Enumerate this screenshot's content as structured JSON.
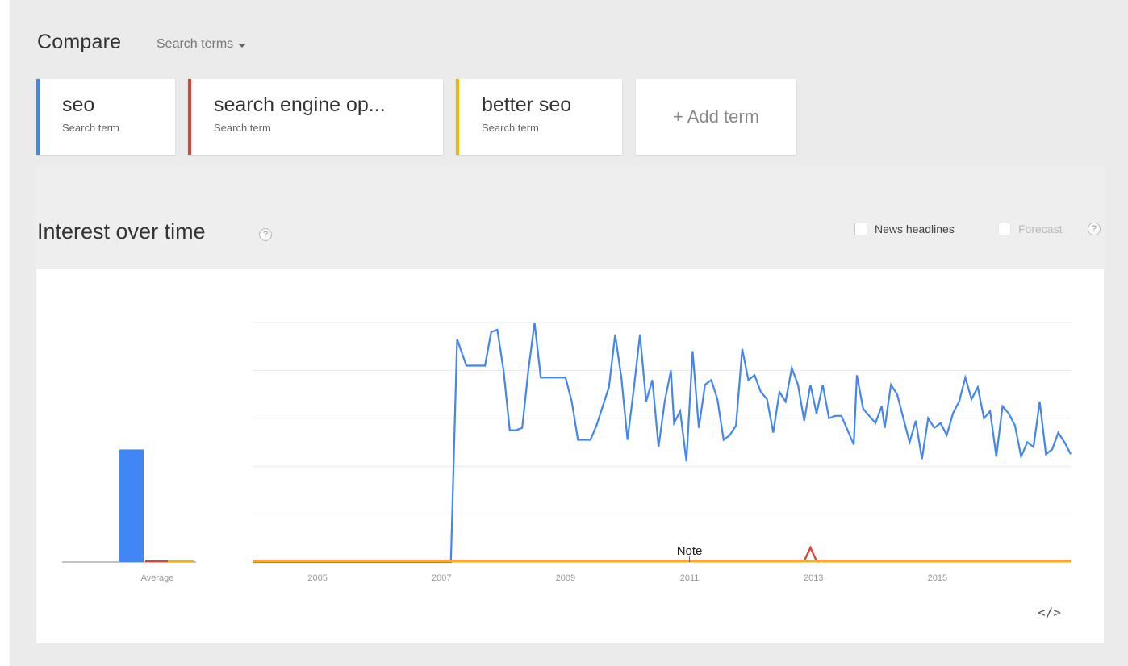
{
  "compare": {
    "title": "Compare",
    "mode_label": "Search terms"
  },
  "terms": [
    {
      "name": "seo",
      "subtitle": "Search term",
      "color": "#4285f4"
    },
    {
      "name": "search engine op...",
      "subtitle": "Search term",
      "color": "#db4437"
    },
    {
      "name": "better seo",
      "subtitle": "Search term",
      "color": "#f4b400"
    }
  ],
  "add_term_label": "+ Add term",
  "interest": {
    "title": "Interest over time",
    "help_glyph": "?",
    "news_headlines_label": "News headlines",
    "forecast_label": "Forecast"
  },
  "embed_label": "</>",
  "chart_data": {
    "type": "line",
    "ylim": [
      0,
      100
    ],
    "grid": true,
    "x_ticks": [
      "2005",
      "2007",
      "2009",
      "2011",
      "2013",
      "2015"
    ],
    "average_label": "Average",
    "average": [
      {
        "term": "seo",
        "value": 47
      },
      {
        "term": "search engine op...",
        "value": 0.5
      },
      {
        "term": "better seo",
        "value": 0.3
      }
    ],
    "note_label": "Note",
    "note_x": 2011.05,
    "series": [
      {
        "name": "seo",
        "color": "#4285f4",
        "points": [
          [
            2004.0,
            0
          ],
          [
            2007.2,
            0
          ],
          [
            2007.3,
            93
          ],
          [
            2007.45,
            82
          ],
          [
            2007.6,
            82
          ],
          [
            2007.75,
            82
          ],
          [
            2007.85,
            96
          ],
          [
            2007.95,
            97
          ],
          [
            2008.05,
            80
          ],
          [
            2008.15,
            55
          ],
          [
            2008.25,
            55
          ],
          [
            2008.35,
            56
          ],
          [
            2008.45,
            80
          ],
          [
            2008.55,
            100
          ],
          [
            2008.65,
            77
          ],
          [
            2008.75,
            77
          ],
          [
            2008.85,
            77
          ],
          [
            2008.95,
            77
          ],
          [
            2009.05,
            77
          ],
          [
            2009.15,
            67
          ],
          [
            2009.25,
            51
          ],
          [
            2009.35,
            51
          ],
          [
            2009.45,
            51
          ],
          [
            2009.55,
            57
          ],
          [
            2009.65,
            65
          ],
          [
            2009.75,
            73
          ],
          [
            2009.85,
            95
          ],
          [
            2009.95,
            77
          ],
          [
            2010.05,
            51
          ],
          [
            2010.15,
            72
          ],
          [
            2010.25,
            95
          ],
          [
            2010.35,
            67
          ],
          [
            2010.45,
            76
          ],
          [
            2010.55,
            48
          ],
          [
            2010.65,
            67
          ],
          [
            2010.75,
            80
          ],
          [
            2010.8,
            58
          ],
          [
            2010.9,
            63
          ],
          [
            2011.0,
            42
          ],
          [
            2011.1,
            88
          ],
          [
            2011.2,
            56
          ],
          [
            2011.3,
            74
          ],
          [
            2011.4,
            76
          ],
          [
            2011.5,
            68
          ],
          [
            2011.6,
            51
          ],
          [
            2011.7,
            53
          ],
          [
            2011.8,
            57
          ],
          [
            2011.9,
            89
          ],
          [
            2012.0,
            76
          ],
          [
            2012.1,
            78
          ],
          [
            2012.2,
            71
          ],
          [
            2012.3,
            68
          ],
          [
            2012.4,
            54
          ],
          [
            2012.5,
            71
          ],
          [
            2012.6,
            67
          ],
          [
            2012.7,
            81
          ],
          [
            2012.8,
            74
          ],
          [
            2012.9,
            59
          ],
          [
            2013.0,
            74
          ],
          [
            2013.1,
            62
          ],
          [
            2013.2,
            74
          ],
          [
            2013.3,
            60
          ],
          [
            2013.4,
            61
          ],
          [
            2013.5,
            61
          ],
          [
            2013.6,
            55
          ],
          [
            2013.7,
            49
          ],
          [
            2013.75,
            78
          ],
          [
            2013.85,
            64
          ],
          [
            2013.95,
            61
          ],
          [
            2014.05,
            58
          ],
          [
            2014.15,
            65
          ],
          [
            2014.2,
            56
          ],
          [
            2014.3,
            74
          ],
          [
            2014.4,
            70
          ],
          [
            2014.5,
            60
          ],
          [
            2014.6,
            50
          ],
          [
            2014.7,
            59
          ],
          [
            2014.8,
            43
          ],
          [
            2014.9,
            60
          ],
          [
            2015.0,
            56
          ],
          [
            2015.1,
            58
          ],
          [
            2015.2,
            53
          ],
          [
            2015.3,
            62
          ],
          [
            2015.4,
            67
          ],
          [
            2015.5,
            77
          ],
          [
            2015.6,
            68
          ],
          [
            2015.7,
            73
          ],
          [
            2015.8,
            60
          ],
          [
            2015.9,
            63
          ],
          [
            2016.0,
            44
          ],
          [
            2016.1,
            65
          ],
          [
            2016.2,
            62
          ],
          [
            2016.3,
            57
          ],
          [
            2016.4,
            44
          ],
          [
            2016.5,
            50
          ],
          [
            2016.6,
            48
          ],
          [
            2016.7,
            67
          ],
          [
            2016.8,
            45
          ],
          [
            2016.9,
            47
          ],
          [
            2017.0,
            54
          ],
          [
            2017.1,
            50
          ],
          [
            2017.2,
            45
          ]
        ]
      },
      {
        "name": "search engine op...",
        "color": "#db4437",
        "points": [
          [
            2004.0,
            0.5
          ],
          [
            2012.9,
            0.5
          ],
          [
            2013.0,
            6
          ],
          [
            2013.1,
            0.5
          ],
          [
            2017.2,
            0.5
          ]
        ]
      },
      {
        "name": "better seo",
        "color": "#f4b400",
        "points": [
          [
            2004.0,
            0.3
          ],
          [
            2017.2,
            0.3
          ]
        ]
      }
    ]
  }
}
